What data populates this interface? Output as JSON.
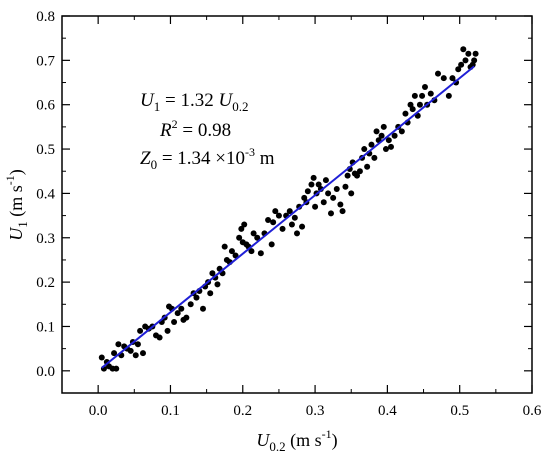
{
  "chart_data": {
    "type": "scatter",
    "title": "",
    "xlabel": {
      "main": "U",
      "sub": "0.2",
      "unit_prefix": " (m s",
      "unit_sup": "-1",
      "unit_suffix": ")"
    },
    "ylabel": {
      "main": "U",
      "sub": "1",
      "unit_prefix": " (m s",
      "unit_sup": "-1",
      "unit_suffix": ")"
    },
    "xlim": [
      -0.05,
      0.6
    ],
    "ylim": [
      -0.05,
      0.8
    ],
    "xticks": [
      "0.0",
      "0.1",
      "0.2",
      "0.3",
      "0.4",
      "0.5",
      "0.6"
    ],
    "yticks": [
      "0.0",
      "0.1",
      "0.2",
      "0.3",
      "0.4",
      "0.5",
      "0.6",
      "0.7",
      "0.8"
    ],
    "grid": false,
    "colors": {
      "points": "#000000",
      "fit_line": "#1f1fd6",
      "axes": "#000000"
    },
    "annotations": {
      "eq": {
        "lhs": "U",
        "lhs_sub": "1",
        "mid": " = 1.32 ",
        "rhs": "U",
        "rhs_sub": "0.2"
      },
      "r2": {
        "lhs": "R",
        "sup": "2",
        "rest": " =  0.98"
      },
      "z0": {
        "lhs": "Z",
        "lhs_sub": "0",
        "mid": " = 1.34 ×10",
        "sup": "-3",
        "unit": " m"
      }
    },
    "fit": {
      "slope": 1.32,
      "x_range": [
        0.005,
        0.52
      ]
    },
    "points": [
      [
        0.005,
        0.03
      ],
      [
        0.008,
        0.005
      ],
      [
        0.012,
        0.02
      ],
      [
        0.015,
        0.01
      ],
      [
        0.02,
        0.005
      ],
      [
        0.025,
        0.005
      ],
      [
        0.022,
        0.04
      ],
      [
        0.028,
        0.06
      ],
      [
        0.032,
        0.035
      ],
      [
        0.036,
        0.055
      ],
      [
        0.04,
        0.05
      ],
      [
        0.045,
        0.045
      ],
      [
        0.048,
        0.065
      ],
      [
        0.052,
        0.035
      ],
      [
        0.055,
        0.06
      ],
      [
        0.058,
        0.09
      ],
      [
        0.062,
        0.04
      ],
      [
        0.065,
        0.1
      ],
      [
        0.07,
        0.095
      ],
      [
        0.075,
        0.1
      ],
      [
        0.08,
        0.08
      ],
      [
        0.085,
        0.075
      ],
      [
        0.088,
        0.11
      ],
      [
        0.092,
        0.12
      ],
      [
        0.096,
        0.09
      ],
      [
        0.098,
        0.145
      ],
      [
        0.102,
        0.14
      ],
      [
        0.105,
        0.11
      ],
      [
        0.11,
        0.13
      ],
      [
        0.115,
        0.14
      ],
      [
        0.118,
        0.115
      ],
      [
        0.122,
        0.12
      ],
      [
        0.128,
        0.15
      ],
      [
        0.132,
        0.175
      ],
      [
        0.136,
        0.165
      ],
      [
        0.14,
        0.18
      ],
      [
        0.145,
        0.14
      ],
      [
        0.148,
        0.19
      ],
      [
        0.152,
        0.2
      ],
      [
        0.155,
        0.175
      ],
      [
        0.158,
        0.22
      ],
      [
        0.162,
        0.21
      ],
      [
        0.165,
        0.195
      ],
      [
        0.168,
        0.23
      ],
      [
        0.172,
        0.22
      ],
      [
        0.175,
        0.28
      ],
      [
        0.178,
        0.25
      ],
      [
        0.182,
        0.245
      ],
      [
        0.185,
        0.27
      ],
      [
        0.19,
        0.26
      ],
      [
        0.195,
        0.3
      ],
      [
        0.198,
        0.32
      ],
      [
        0.2,
        0.29
      ],
      [
        0.202,
        0.33
      ],
      [
        0.205,
        0.285
      ],
      [
        0.208,
        0.28
      ],
      [
        0.212,
        0.27
      ],
      [
        0.215,
        0.31
      ],
      [
        0.22,
        0.3
      ],
      [
        0.225,
        0.265
      ],
      [
        0.23,
        0.31
      ],
      [
        0.235,
        0.34
      ],
      [
        0.24,
        0.285
      ],
      [
        0.242,
        0.335
      ],
      [
        0.245,
        0.36
      ],
      [
        0.25,
        0.35
      ],
      [
        0.255,
        0.32
      ],
      [
        0.26,
        0.35
      ],
      [
        0.265,
        0.36
      ],
      [
        0.268,
        0.33
      ],
      [
        0.272,
        0.345
      ],
      [
        0.275,
        0.31
      ],
      [
        0.278,
        0.37
      ],
      [
        0.282,
        0.325
      ],
      [
        0.285,
        0.39
      ],
      [
        0.288,
        0.38
      ],
      [
        0.29,
        0.405
      ],
      [
        0.295,
        0.42
      ],
      [
        0.298,
        0.435
      ],
      [
        0.3,
        0.37
      ],
      [
        0.302,
        0.4
      ],
      [
        0.305,
        0.42
      ],
      [
        0.308,
        0.41
      ],
      [
        0.312,
        0.38
      ],
      [
        0.315,
        0.43
      ],
      [
        0.318,
        0.4
      ],
      [
        0.322,
        0.355
      ],
      [
        0.325,
        0.39
      ],
      [
        0.33,
        0.41
      ],
      [
        0.335,
        0.375
      ],
      [
        0.338,
        0.36
      ],
      [
        0.342,
        0.415
      ],
      [
        0.345,
        0.44
      ],
      [
        0.348,
        0.455
      ],
      [
        0.35,
        0.4
      ],
      [
        0.352,
        0.47
      ],
      [
        0.355,
        0.445
      ],
      [
        0.358,
        0.44
      ],
      [
        0.362,
        0.45
      ],
      [
        0.365,
        0.48
      ],
      [
        0.368,
        0.5
      ],
      [
        0.372,
        0.46
      ],
      [
        0.375,
        0.49
      ],
      [
        0.378,
        0.51
      ],
      [
        0.382,
        0.48
      ],
      [
        0.385,
        0.54
      ],
      [
        0.388,
        0.52
      ],
      [
        0.392,
        0.53
      ],
      [
        0.395,
        0.55
      ],
      [
        0.398,
        0.5
      ],
      [
        0.402,
        0.52
      ],
      [
        0.405,
        0.505
      ],
      [
        0.41,
        0.53
      ],
      [
        0.415,
        0.55
      ],
      [
        0.42,
        0.54
      ],
      [
        0.425,
        0.58
      ],
      [
        0.428,
        0.56
      ],
      [
        0.432,
        0.6
      ],
      [
        0.435,
        0.59
      ],
      [
        0.438,
        0.62
      ],
      [
        0.442,
        0.575
      ],
      [
        0.445,
        0.6
      ],
      [
        0.448,
        0.62
      ],
      [
        0.452,
        0.64
      ],
      [
        0.455,
        0.6
      ],
      [
        0.46,
        0.625
      ],
      [
        0.465,
        0.61
      ],
      [
        0.47,
        0.67
      ],
      [
        0.478,
        0.66
      ],
      [
        0.485,
        0.62
      ],
      [
        0.49,
        0.66
      ],
      [
        0.495,
        0.65
      ],
      [
        0.498,
        0.68
      ],
      [
        0.502,
        0.69
      ],
      [
        0.505,
        0.725
      ],
      [
        0.508,
        0.7
      ],
      [
        0.512,
        0.715
      ],
      [
        0.515,
        0.685
      ],
      [
        0.518,
        0.69
      ],
      [
        0.52,
        0.7
      ],
      [
        0.522,
        0.715
      ]
    ]
  }
}
